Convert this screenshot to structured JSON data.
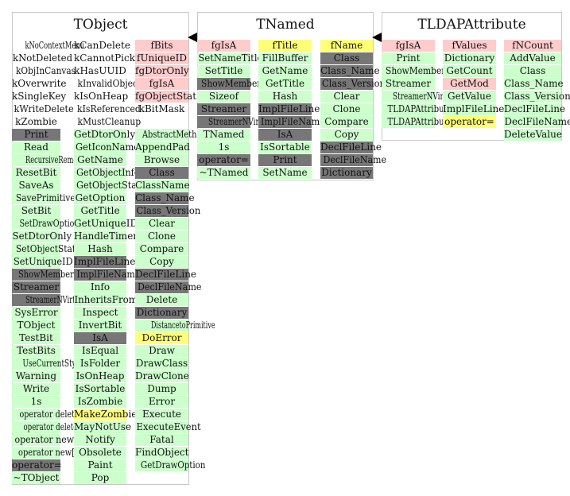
{
  "legend_colors": {
    "green": "#ccffcc",
    "dark": "#777777",
    "pink": "#ffcccc",
    "yellow": "#ffff77"
  },
  "panels": [
    {
      "id": "tobject",
      "title": "TObject",
      "columns": [
        [
          {
            "t": "kNoContextMenu",
            "c": "plain"
          },
          {
            "t": "kNotDeleted",
            "c": "plain"
          },
          {
            "t": "kObjInCanvas",
            "c": "plain"
          },
          {
            "t": "kOverwrite",
            "c": "plain"
          },
          {
            "t": "kSingleKey",
            "c": "plain"
          },
          {
            "t": "kWriteDelete",
            "c": "plain"
          },
          {
            "t": "kZombie",
            "c": "plain"
          },
          {
            "t": "Print",
            "c": "dark"
          },
          {
            "t": "Read",
            "c": "green"
          },
          {
            "t": "RecursiveRemove",
            "c": "green"
          },
          {
            "t": "ResetBit",
            "c": "green"
          },
          {
            "t": "SaveAs",
            "c": "green"
          },
          {
            "t": "SavePrimitive",
            "c": "green"
          },
          {
            "t": "SetBit",
            "c": "green"
          },
          {
            "t": "SetDrawOption",
            "c": "green"
          },
          {
            "t": "SetDtorOnly",
            "c": "green"
          },
          {
            "t": "SetObjectStat",
            "c": "green"
          },
          {
            "t": "SetUniqueID",
            "c": "green"
          },
          {
            "t": "ShowMembers",
            "c": "dark"
          },
          {
            "t": "Streamer",
            "c": "dark"
          },
          {
            "t": "StreamerNVirtual",
            "c": "dark"
          },
          {
            "t": "SysError",
            "c": "green"
          },
          {
            "t": "TObject",
            "c": "green"
          },
          {
            "t": "TestBit",
            "c": "green"
          },
          {
            "t": "TestBits",
            "c": "green"
          },
          {
            "t": "UseCurrentStyle",
            "c": "green"
          },
          {
            "t": "Warning",
            "c": "green"
          },
          {
            "t": "Write",
            "c": "green"
          },
          {
            "t": "1s",
            "c": "green"
          },
          {
            "t": "operator delete",
            "c": "green"
          },
          {
            "t": "operator delete[]",
            "c": "green"
          },
          {
            "t": "operator new",
            "c": "green"
          },
          {
            "t": "operator new[]",
            "c": "green"
          },
          {
            "t": "operator=",
            "c": "dark"
          },
          {
            "t": "~TObject",
            "c": "green"
          }
        ],
        [
          {
            "t": "kCanDelete",
            "c": "plain"
          },
          {
            "t": "kCannotPick",
            "c": "plain"
          },
          {
            "t": "kHasUUID",
            "c": "plain"
          },
          {
            "t": "kInvalidObject",
            "c": "plain"
          },
          {
            "t": "kIsOnHeap",
            "c": "plain"
          },
          {
            "t": "kIsReferenced",
            "c": "plain"
          },
          {
            "t": "kMustCleanup",
            "c": "plain"
          },
          {
            "t": "GetDtorOnly",
            "c": "green"
          },
          {
            "t": "GetIconName",
            "c": "green"
          },
          {
            "t": "GetName",
            "c": "green"
          },
          {
            "t": "GetObjectInfo",
            "c": "green"
          },
          {
            "t": "GetObjectStat",
            "c": "green"
          },
          {
            "t": "GetOption",
            "c": "green"
          },
          {
            "t": "GetTitle",
            "c": "green"
          },
          {
            "t": "GetUniqueID",
            "c": "green"
          },
          {
            "t": "HandleTimer",
            "c": "green"
          },
          {
            "t": "Hash",
            "c": "green"
          },
          {
            "t": "ImplFileLine",
            "c": "dark"
          },
          {
            "t": "ImplFileName",
            "c": "dark"
          },
          {
            "t": "Info",
            "c": "green"
          },
          {
            "t": "InheritsFrom",
            "c": "green"
          },
          {
            "t": "Inspect",
            "c": "green"
          },
          {
            "t": "InvertBit",
            "c": "green"
          },
          {
            "t": "IsA",
            "c": "dark"
          },
          {
            "t": "IsEqual",
            "c": "green"
          },
          {
            "t": "IsFolder",
            "c": "green"
          },
          {
            "t": "IsOnHeap",
            "c": "green"
          },
          {
            "t": "IsSortable",
            "c": "green"
          },
          {
            "t": "IsZombie",
            "c": "green"
          },
          {
            "t": "MakeZombie",
            "c": "yellow"
          },
          {
            "t": "MayNotUse",
            "c": "green"
          },
          {
            "t": "Notify",
            "c": "green"
          },
          {
            "t": "Obsolete",
            "c": "green"
          },
          {
            "t": "Paint",
            "c": "green"
          },
          {
            "t": "Pop",
            "c": "green"
          }
        ],
        [
          {
            "t": "fBits",
            "c": "pink"
          },
          {
            "t": "fUniqueID",
            "c": "pink"
          },
          {
            "t": "fgDtorOnly",
            "c": "pink"
          },
          {
            "t": "fgIsA",
            "c": "pink"
          },
          {
            "t": "fgObjectStat",
            "c": "pink"
          },
          {
            "t": "kBitMask",
            "c": "plain"
          },
          {
            "t": "",
            "c": "plain"
          },
          {
            "t": "AbstractMethod",
            "c": "green"
          },
          {
            "t": "AppendPad",
            "c": "green"
          },
          {
            "t": "Browse",
            "c": "green"
          },
          {
            "t": "Class",
            "c": "dark"
          },
          {
            "t": "ClassName",
            "c": "green"
          },
          {
            "t": "Class_Name",
            "c": "dark"
          },
          {
            "t": "Class_Version",
            "c": "dark"
          },
          {
            "t": "Clear",
            "c": "green"
          },
          {
            "t": "Clone",
            "c": "green"
          },
          {
            "t": "Compare",
            "c": "green"
          },
          {
            "t": "Copy",
            "c": "green"
          },
          {
            "t": "DeclFileLine",
            "c": "dark"
          },
          {
            "t": "DeclFileName",
            "c": "dark"
          },
          {
            "t": "Delete",
            "c": "green"
          },
          {
            "t": "Dictionary",
            "c": "dark"
          },
          {
            "t": "DistancetoPrimitive",
            "c": "green"
          },
          {
            "t": "DoError",
            "c": "yellow"
          },
          {
            "t": "Draw",
            "c": "green"
          },
          {
            "t": "DrawClass",
            "c": "green"
          },
          {
            "t": "DrawClone",
            "c": "green"
          },
          {
            "t": "Dump",
            "c": "green"
          },
          {
            "t": "Error",
            "c": "green"
          },
          {
            "t": "Execute",
            "c": "green"
          },
          {
            "t": "ExecuteEvent",
            "c": "green"
          },
          {
            "t": "Fatal",
            "c": "green"
          },
          {
            "t": "FindObject",
            "c": "green"
          },
          {
            "t": "GetDrawOption",
            "c": "green"
          }
        ]
      ]
    },
    {
      "id": "tnamed",
      "title": "TNamed",
      "columns": [
        [
          {
            "t": "fgIsA",
            "c": "pink"
          },
          {
            "t": "SetNameTitle",
            "c": "green"
          },
          {
            "t": "SetTitle",
            "c": "green"
          },
          {
            "t": "ShowMembers",
            "c": "dark"
          },
          {
            "t": "Sizeof",
            "c": "green"
          },
          {
            "t": "Streamer",
            "c": "dark"
          },
          {
            "t": "StreamerNVirtual",
            "c": "dark"
          },
          {
            "t": "TNamed",
            "c": "green"
          },
          {
            "t": "1s",
            "c": "green"
          },
          {
            "t": "operator=",
            "c": "dark"
          },
          {
            "t": "~TNamed",
            "c": "green"
          }
        ],
        [
          {
            "t": "fTitle",
            "c": "yellow"
          },
          {
            "t": "FillBuffer",
            "c": "green"
          },
          {
            "t": "GetName",
            "c": "green"
          },
          {
            "t": "GetTitle",
            "c": "green"
          },
          {
            "t": "Hash",
            "c": "green"
          },
          {
            "t": "ImplFileLine",
            "c": "dark"
          },
          {
            "t": "ImplFileName",
            "c": "dark"
          },
          {
            "t": "IsA",
            "c": "dark"
          },
          {
            "t": "IsSortable",
            "c": "green"
          },
          {
            "t": "Print",
            "c": "dark"
          },
          {
            "t": "SetName",
            "c": "green"
          }
        ],
        [
          {
            "t": "fName",
            "c": "yellow"
          },
          {
            "t": "Class",
            "c": "dark"
          },
          {
            "t": "Class_Name",
            "c": "dark"
          },
          {
            "t": "Class_Version",
            "c": "dark"
          },
          {
            "t": "Clear",
            "c": "green"
          },
          {
            "t": "Clone",
            "c": "green"
          },
          {
            "t": "Compare",
            "c": "green"
          },
          {
            "t": "Copy",
            "c": "green"
          },
          {
            "t": "DeclFileLine",
            "c": "dark"
          },
          {
            "t": "DeclFileName",
            "c": "dark"
          },
          {
            "t": "Dictionary",
            "c": "dark"
          }
        ]
      ]
    },
    {
      "id": "tldapattribute",
      "title": "TLDAPAttribute",
      "columns": [
        [
          {
            "t": "fgIsA",
            "c": "pink"
          },
          {
            "t": "Print",
            "c": "green"
          },
          {
            "t": "ShowMembers",
            "c": "green"
          },
          {
            "t": "Streamer",
            "c": "green"
          },
          {
            "t": "StreamerNVirtual",
            "c": "green"
          },
          {
            "t": "TLDAPAttribute",
            "c": "green"
          },
          {
            "t": "TLDAPAttribute",
            "c": "green"
          }
        ],
        [
          {
            "t": "fValues",
            "c": "pink"
          },
          {
            "t": "Dictionary",
            "c": "green"
          },
          {
            "t": "GetCount",
            "c": "green"
          },
          {
            "t": "GetMod",
            "c": "pink"
          },
          {
            "t": "GetValue",
            "c": "green"
          },
          {
            "t": "ImplFileLine",
            "c": "green"
          },
          {
            "t": "operator=",
            "c": "yellow"
          }
        ],
        [
          {
            "t": "fNCount",
            "c": "pink"
          },
          {
            "t": "AddValue",
            "c": "green"
          },
          {
            "t": "Class",
            "c": "green"
          },
          {
            "t": "Class_Name",
            "c": "green"
          },
          {
            "t": "Class_Version",
            "c": "green"
          },
          {
            "t": "DeclFileLine",
            "c": "green"
          },
          {
            "t": "DeclFileName",
            "c": "green"
          },
          {
            "t": "DeleteValue",
            "c": "green"
          }
        ]
      ]
    }
  ]
}
